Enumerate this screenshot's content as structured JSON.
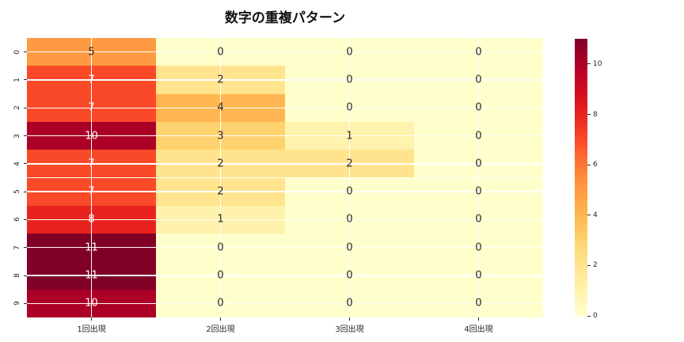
{
  "title": "数字の重複パターン",
  "chart_data": {
    "type": "heatmap",
    "title": "数字の重複パターン",
    "rows": [
      "0",
      "1",
      "2",
      "3",
      "4",
      "5",
      "6",
      "7",
      "8",
      "9"
    ],
    "columns": [
      "1回出現",
      "2回出現",
      "3回出現",
      "4回出現"
    ],
    "values": [
      [
        5,
        0,
        0,
        0
      ],
      [
        7,
        2,
        0,
        0
      ],
      [
        7,
        4,
        0,
        0
      ],
      [
        10,
        3,
        1,
        0
      ],
      [
        7,
        2,
        2,
        0
      ],
      [
        7,
        2,
        0,
        0
      ],
      [
        8,
        1,
        0,
        0
      ],
      [
        11,
        0,
        0,
        0
      ],
      [
        11,
        0,
        0,
        0
      ],
      [
        10,
        0,
        0,
        0
      ]
    ],
    "vmin": 0,
    "vmax": 11,
    "colormap": "YlOrRd",
    "colormap_stops": [
      "#ffffcc",
      "#ffeda0",
      "#fed976",
      "#feb24c",
      "#fd8d3c",
      "#fc4e2a",
      "#e31a1c",
      "#bd0026",
      "#800026"
    ],
    "colorbar_ticks": [
      0,
      2,
      4,
      6,
      8,
      10
    ],
    "grid": true,
    "gridline_color": "#ffffff",
    "annotated": true,
    "annotation_dark_color": "#262626",
    "annotation_light_color": "#ffffff",
    "legend_position": "right-colorbar"
  }
}
